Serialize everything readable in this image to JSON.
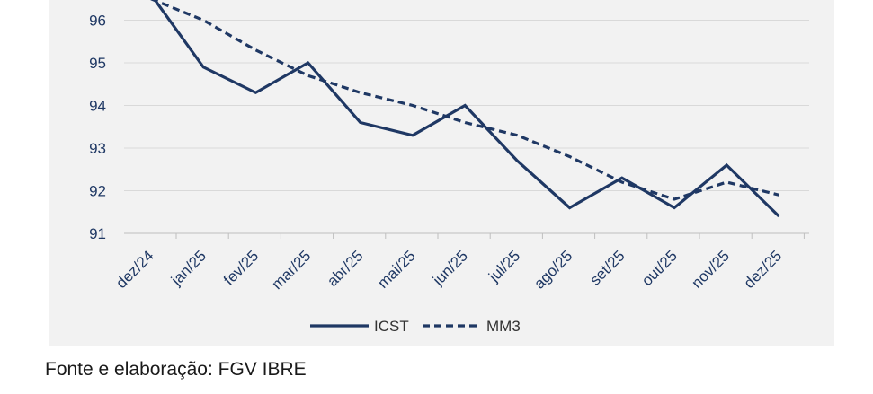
{
  "chart_data": {
    "type": "line",
    "categories": [
      "dez/24",
      "jan/25",
      "fev/25",
      "mar/25",
      "abr/25",
      "mai/25",
      "jun/25",
      "jul/25",
      "ago/25",
      "set/25",
      "out/25",
      "nov/25",
      "dez/25"
    ],
    "series": [
      {
        "name": "ICST",
        "style": "solid",
        "values": [
          96.6,
          94.9,
          94.3,
          95.0,
          93.6,
          93.3,
          94.0,
          92.7,
          91.6,
          92.3,
          91.6,
          92.6,
          91.4
        ]
      },
      {
        "name": "MM3",
        "style": "dashed",
        "values": [
          96.5,
          96.0,
          95.3,
          94.7,
          94.3,
          94.0,
          93.6,
          93.3,
          92.8,
          92.2,
          91.8,
          92.2,
          91.9
        ]
      }
    ],
    "yticks": [
      91,
      92,
      93,
      94,
      95,
      96
    ],
    "ylim": [
      91,
      96.6
    ],
    "grid": true,
    "legend_position": "bottom",
    "color": "#1f3864"
  },
  "source_text": "Fonte e elaboração: FGV IBRE"
}
